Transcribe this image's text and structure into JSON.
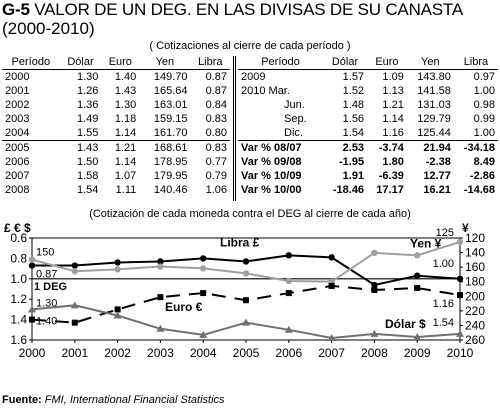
{
  "figure": {
    "code": "G-5",
    "title": "VALOR DE UN DEG. EN LAS DIVISAS DE SU CANASTA",
    "subtitle": "(2000-2010)",
    "table_note": "( Cotizaciones al cierre de cada período )",
    "chart_note": "(Cotización de cada moneda contra el DEG al cierre de cada año)",
    "source_label": "Fuente:",
    "source_text": "FMI, International Financial Statistics"
  },
  "table": {
    "headers": [
      "Período",
      "Dólar",
      "Euro",
      "Yen",
      "Libra"
    ],
    "left_rows": [
      [
        "2000",
        "1.30",
        "1.40",
        "149.70",
        "0.87"
      ],
      [
        "2001",
        "1.26",
        "1.43",
        "165.64",
        "0.87"
      ],
      [
        "2002",
        "1.36",
        "1.30",
        "163.01",
        "0.84"
      ],
      [
        "2003",
        "1.49",
        "1.18",
        "159.15",
        "0.83"
      ],
      [
        "2004",
        "1.55",
        "1.14",
        "161.70",
        "0.80"
      ],
      [
        "2005",
        "1.43",
        "1.21",
        "168.61",
        "0.83"
      ],
      [
        "2006",
        "1.50",
        "1.14",
        "178.95",
        "0.77"
      ],
      [
        "2007",
        "1.58",
        "1.07",
        "179.95",
        "0.79"
      ],
      [
        "2008",
        "1.54",
        "1.11",
        "140.46",
        "1.06"
      ]
    ],
    "right_rows": [
      [
        "2009",
        "1.57",
        "1.09",
        "143.80",
        "0.97"
      ],
      [
        "2010 Mar.",
        "1.52",
        "1.13",
        "141.58",
        "1.00"
      ],
      [
        "Jun.",
        "1.48",
        "1.21",
        "131.03",
        "0.98"
      ],
      [
        "Sep.",
        "1.56",
        "1.14",
        "129.79",
        "0.99"
      ],
      [
        "Dic.",
        "1.54",
        "1.16",
        "125.44",
        "1.00"
      ]
    ],
    "var_rows": [
      [
        "Var % 08/07",
        "2.53",
        "-3.74",
        "21.94",
        "-34.18"
      ],
      [
        "Var % 09/08",
        "-1.95",
        "1.80",
        "-2.38",
        "8.49"
      ],
      [
        "Var % 10/09",
        "1.91",
        "-6.39",
        "12.77",
        "-2.86"
      ],
      [
        "Var % 10/00",
        "-18.46",
        "17.17",
        "16.21",
        "-14.68"
      ]
    ]
  },
  "chart_data": {
    "type": "line",
    "x": [
      "2000",
      "2001",
      "2002",
      "2003",
      "2004",
      "2005",
      "2006",
      "2007",
      "2008",
      "2009",
      "2010"
    ],
    "left_axis": {
      "label": "£ € $",
      "min": 0.6,
      "max": 1.6,
      "inverted": true,
      "ticks": [
        "0.6",
        "0.8",
        "1.0",
        "1.2",
        "1.4",
        "1.6"
      ]
    },
    "right_axis": {
      "label": "¥",
      "min": 120,
      "max": 260,
      "inverted": true,
      "ticks": [
        "120",
        "140",
        "160",
        "180",
        "200",
        "220",
        "240",
        "260"
      ]
    },
    "reference_line": {
      "value": 1.0,
      "label": "1 DEG"
    },
    "series": [
      {
        "name": "Libra £",
        "axis": "left",
        "values": [
          0.87,
          0.87,
          0.84,
          0.83,
          0.8,
          0.83,
          0.77,
          0.79,
          1.06,
          0.97,
          1.0
        ],
        "color": "#000000",
        "style": "solid",
        "marker": "circle"
      },
      {
        "name": "Yen ¥",
        "axis": "right",
        "values": [
          149.7,
          165.64,
          163.01,
          159.15,
          161.7,
          168.61,
          178.95,
          179.95,
          140.46,
          143.8,
          125.44
        ],
        "color": "#a0a0a0",
        "style": "solid",
        "marker": "circle"
      },
      {
        "name": "Euro €",
        "axis": "left",
        "values": [
          1.4,
          1.43,
          1.3,
          1.18,
          1.14,
          1.21,
          1.14,
          1.07,
          1.11,
          1.09,
          1.16
        ],
        "color": "#000000",
        "style": "dashed",
        "marker": "square"
      },
      {
        "name": "Dólar $",
        "axis": "left",
        "values": [
          1.3,
          1.26,
          1.36,
          1.49,
          1.55,
          1.43,
          1.5,
          1.58,
          1.54,
          1.57,
          1.54
        ],
        "color": "#707070",
        "style": "solid",
        "marker": "triangle"
      }
    ],
    "data_labels": [
      {
        "text": "150",
        "series": "Yen ¥",
        "index": 0
      },
      {
        "text": "0.87",
        "series": "Libra £",
        "index": 0
      },
      {
        "text": "1.30",
        "series": "Dólar $",
        "index": 0
      },
      {
        "text": "1.40",
        "series": "Euro €",
        "index": 0
      },
      {
        "text": "125",
        "series": "Yen ¥",
        "index": 10
      },
      {
        "text": "1.00",
        "series": "Libra £",
        "index": 10
      },
      {
        "text": "1.16",
        "series": "Euro €",
        "index": 10
      },
      {
        "text": "1.54",
        "series": "Dólar $",
        "index": 10
      }
    ]
  }
}
